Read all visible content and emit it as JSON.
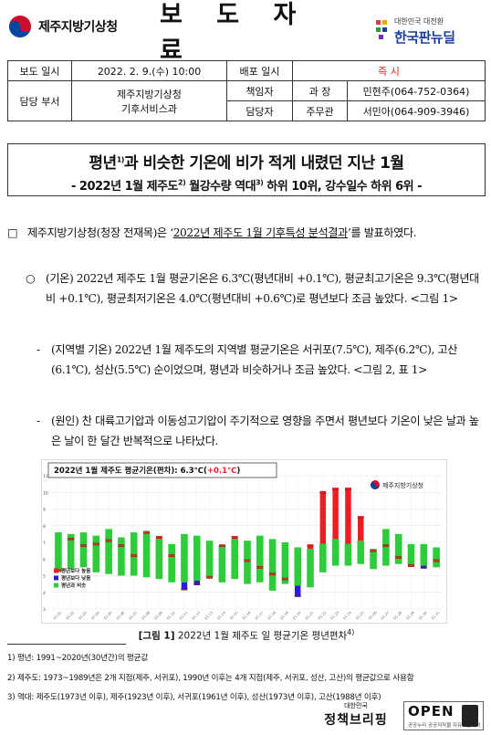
{
  "header": {
    "org_name": "제주지방기상청",
    "doc_type": "보 도 자 료",
    "newdeal_small": "대한민국 대전환",
    "newdeal_big": "한국판뉴딜"
  },
  "info": {
    "report_date_label": "보도 일시",
    "report_date": "2022. 2. 9.(수) 10:00",
    "distribution_label": "배포 일시",
    "distribution_value": "즉 시",
    "dept_label": "담당 부서",
    "dept_line1": "제주지방기상청",
    "dept_line2": "기후서비스과",
    "responsible_label": "책임자",
    "responsible_role": "과    장",
    "responsible_name": "민현주(064-752-0364)",
    "contact_label": "담당자",
    "contact_role": "주무관",
    "contact_name": "서민아(064-909-3946)"
  },
  "headline": {
    "main_a": "평년",
    "main_sup": "1)",
    "main_b": "과 비슷한 기온에 비가 적게 내렸던 지난 1월",
    "sub_a": "- 2022년 1월 제주도",
    "sub_sup1": "2)",
    "sub_b": " 월강수량 역대",
    "sub_sup2": "3)",
    "sub_c": " 하위 10위, 강수일수 하위 6위 -"
  },
  "body": {
    "p1_mark": "□",
    "p1_a": "제주지방기상청(청장 전재목)은 ‘",
    "p1_u": "2022년 제주도 1월 기후특성 분석결과",
    "p1_b": "’를 발표하였다.",
    "p2_mark": "○",
    "p2_text": "(기온) 2022년 제주도 1월 평균기온은 6.3℃(평년대비 +0.1℃), 평균최고기온은 9.3℃(평년대비 +0.1℃), 평균최저기온은 4.0℃(평년대비 +0.6℃)로 평년보다 조금 높았다. <그림 1>",
    "p3_mark": "-",
    "p3_text": "(지역별 기온) 2022년 1월 제주도의 지역별 평균기온은 서귀포(7.5℃), 제주(6.2℃), 고산(6.1℃), 성산(5.5℃) 순이었으며, 평년과 비슷하거나 조금 높았다. <그림 2, 표 1>",
    "p4_mark": "-",
    "p4_text": "(원인) 찬 대륙고기압과 이동성고기압이 주기적으로 영향을 주면서 평년보다 기온이 낮은 날과 높은 날이 한 달간 반복적으로 나타났다."
  },
  "figure": {
    "caption_bold": "[그림 1]",
    "caption_text": " 2022년 1월 제주도 일 평균기온 평년편차",
    "caption_sup": "4)"
  },
  "footnotes": [
    "1) 평년: 1991~2020년(30년간)의 평균값",
    "2) 제주도: 1973~1989년은 2개 지점(제주, 서귀포), 1990년 이후는 4개 지점(제주, 서귀포, 성산, 고산)의 평균값으로 사용함",
    "3) 역대: 제주도(1973년 이후), 제주(1923년 이후), 서귀포(1961년 이후), 성산(1973년 이후), 고산(1988년 이후)"
  ],
  "policy_small": "대한민국",
  "policy_big": "정책브리핑",
  "open_title": "OPEN",
  "open_sub": "공공누리 공공저작물 자유이용허락",
  "chart_data": {
    "type": "bar",
    "title": "2022년 1월 제주도 평균기온(편차):  6.3℃(+0.1℃)",
    "title_value_highlight": "+0.1℃",
    "logo_text": "제주지방기상청",
    "ylim": [
      3,
      11
    ],
    "yticks": [
      "11",
      "10",
      "9",
      "8",
      "7",
      "6",
      "5",
      "4",
      "3"
    ],
    "x": [
      "01.01",
      "01.02",
      "01.03",
      "01.04",
      "01.05",
      "01.06",
      "01.07",
      "01.08",
      "01.09",
      "01.10",
      "01.11",
      "01.12",
      "01.13",
      "01.14",
      "01.15",
      "01.16",
      "01.17",
      "01.18",
      "01.19",
      "01.20",
      "01.21",
      "01.22",
      "01.23",
      "01.24",
      "01.25",
      "01.26",
      "01.27",
      "01.28",
      "01.29",
      "01.30",
      "01.31"
    ],
    "normal_range_low": [
      5.3,
      5.4,
      5.5,
      5.2,
      5.1,
      5.0,
      5.0,
      4.9,
      4.8,
      4.6,
      4.6,
      4.7,
      4.9,
      4.6,
      4.8,
      4.5,
      4.6,
      4.1,
      4.5,
      4.4,
      4.3,
      5.2,
      5.6,
      5.6,
      5.7,
      5.4,
      5.6,
      5.7,
      5.6,
      5.6,
      5.5
    ],
    "normal_range_high": [
      7.6,
      7.5,
      7.6,
      7.4,
      7.8,
      7.3,
      7.6,
      7.6,
      7.2,
      6.9,
      7.5,
      7.4,
      7.1,
      6.8,
      7.2,
      7.1,
      7.4,
      7.2,
      7.0,
      6.7,
      6.6,
      6.9,
      7.2,
      6.9,
      7.1,
      6.6,
      7.8,
      7.5,
      6.9,
      6.9,
      6.7
    ],
    "daily_mean": [
      5.3,
      7.2,
      6.8,
      6.9,
      7.1,
      6.8,
      6.2,
      7.6,
      7.3,
      6.2,
      4.2,
      4.5,
      4.9,
      6.8,
      7.3,
      5.9,
      5.5,
      5.1,
      4.8,
      3.8,
      6.8,
      10.0,
      10.2,
      10.2,
      8.5,
      6.5,
      6.8,
      6.1,
      5.6,
      5.5,
      5.9
    ],
    "series": [
      {
        "name": "평년보다 높음",
        "color": "#ee1c24"
      },
      {
        "name": "평년보다 낮음",
        "color": "#2a1be0"
      },
      {
        "name": "평년과 비슷",
        "color": "#2ecc3a"
      }
    ],
    "legend_position": "bottom-left",
    "grid": true
  }
}
